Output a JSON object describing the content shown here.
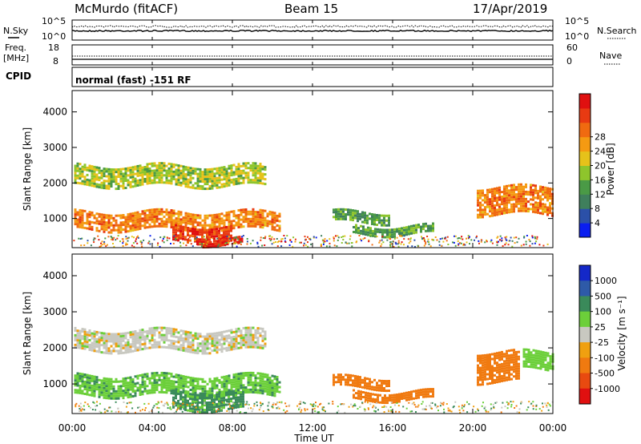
{
  "header": {
    "station": "McMurdo (fitACF)",
    "beam": "Beam 15",
    "date": "17/Apr/2019"
  },
  "noise_panel": {
    "left_label": "N.Sky",
    "left_ticks": [
      "10^5",
      "10^0"
    ],
    "right_ticks": [
      "10^5",
      "10^0"
    ],
    "right_label": "N.Search"
  },
  "freq_panel": {
    "left_label_1": "Freq.",
    "left_label_2": "[MHz]",
    "left_ticks": [
      "18",
      "8"
    ],
    "right_ticks": [
      "60",
      "0"
    ],
    "right_label": "Nave"
  },
  "cpid_panel": {
    "label": "CPID",
    "mode_text": "normal (fast) -151 RF"
  },
  "x_axis": {
    "tick_labels": [
      "00:00",
      "04:00",
      "08:00",
      "12:00",
      "16:00",
      "20:00",
      "00:00"
    ],
    "label": "Time UT"
  },
  "power_panel": {
    "ylabel": "Slant Range [km]",
    "y_ticks": [
      "1000",
      "2000",
      "3000",
      "4000"
    ],
    "colorbar_label": "Power [dB]",
    "colorbar_ticks": [
      "4",
      "8",
      "12",
      "16",
      "20",
      "24",
      "28"
    ],
    "colorbar_colors": [
      "#0a1ef0",
      "#2b50a8",
      "#3f7f5c",
      "#4a9a46",
      "#8ec52c",
      "#e6c21a",
      "#f59a12",
      "#f06a10",
      "#e83a12",
      "#e01010"
    ]
  },
  "velocity_panel": {
    "ylabel": "Slant Range [km]",
    "y_ticks": [
      "1000",
      "2000",
      "3000",
      "4000"
    ],
    "colorbar_label": "Velocity [m s⁻¹]",
    "colorbar_ticks": [
      "1000",
      "500",
      "100",
      "25",
      "-25",
      "-100",
      "-500",
      "-1000"
    ],
    "colorbar_colors": [
      "#1428c8",
      "#2e5aa8",
      "#3a8a5a",
      "#6ccf3a",
      "#c8c8c0",
      "#f0a010",
      "#f07a10",
      "#e84a10",
      "#e01010"
    ]
  },
  "chart_data": [
    {
      "type": "heatmap",
      "title": "Power",
      "xlabel": "Time UT",
      "ylabel": "Slant Range [km]",
      "xlim": [
        0,
        24
      ],
      "ylim": [
        180,
        4600
      ],
      "zlim": [
        0,
        30
      ],
      "zlabel": "Power [dB]",
      "echo_regions": [
        {
          "t_start": 0.1,
          "t_end": 9.6,
          "range_km": [
            1950,
            2500
          ],
          "power_db": 14
        },
        {
          "t_start": 0.1,
          "t_end": 10.4,
          "range_km": [
            700,
            1200
          ],
          "power_db": 22
        },
        {
          "t_start": 5.0,
          "t_end": 8.0,
          "range_km": [
            350,
            800
          ],
          "power_db": 27
        },
        {
          "t_start": 6.5,
          "t_end": 8.5,
          "range_km": [
            280,
            450
          ],
          "power_db": 29
        },
        {
          "t_start": 13.0,
          "t_end": 15.8,
          "range_km": [
            900,
            1200
          ],
          "power_db": 10
        },
        {
          "t_start": 14.0,
          "t_end": 18.0,
          "range_km": [
            550,
            800
          ],
          "power_db": 10
        },
        {
          "t_start": 20.2,
          "t_end": 24.0,
          "range_km": [
            1100,
            1900
          ],
          "power_db": 22
        }
      ]
    },
    {
      "type": "heatmap",
      "title": "Velocity",
      "xlabel": "Time UT",
      "ylabel": "Slant Range [km]",
      "xlim": [
        0,
        24
      ],
      "ylim": [
        180,
        4600
      ],
      "zlim": [
        -1000,
        1000
      ],
      "zlabel": "Velocity [m s⁻¹]",
      "echo_regions": [
        {
          "t_start": 0.1,
          "t_end": 9.6,
          "range_km": [
            1950,
            2500
          ],
          "velocity_ms": 0
        },
        {
          "t_start": 0.1,
          "t_end": 10.4,
          "range_km": [
            700,
            1250
          ],
          "velocity_ms": 80
        },
        {
          "t_start": 5.0,
          "t_end": 8.5,
          "range_km": [
            280,
            800
          ],
          "velocity_ms": 120
        },
        {
          "t_start": 13.0,
          "t_end": 15.8,
          "range_km": [
            900,
            1200
          ],
          "velocity_ms": -150
        },
        {
          "t_start": 14.0,
          "t_end": 18.0,
          "range_km": [
            550,
            800
          ],
          "velocity_ms": -200
        },
        {
          "t_start": 20.2,
          "t_end": 22.3,
          "range_km": [
            1100,
            1900
          ],
          "velocity_ms": -200
        },
        {
          "t_start": 22.5,
          "t_end": 24.0,
          "range_km": [
            1400,
            1900
          ],
          "velocity_ms": 60
        }
      ]
    }
  ]
}
